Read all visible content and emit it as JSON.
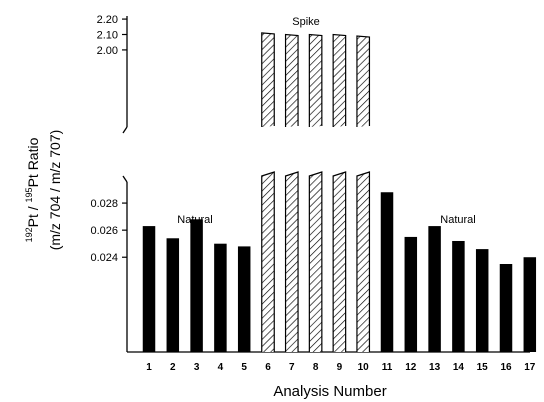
{
  "chart_data": {
    "type": "bar",
    "title": "",
    "xlabel": "Analysis Number",
    "ylabel": {
      "line1_sup1": "192",
      "line1_a": "Pt / ",
      "line1_sup2": "195",
      "line1_b": "Pt  Ratio",
      "line2": "(m/z 704 / m/z 707)"
    },
    "categories": [
      "1",
      "2",
      "3",
      "4",
      "5",
      "6",
      "7",
      "8",
      "9",
      "10",
      "11",
      "12",
      "13",
      "14",
      "15",
      "16",
      "17"
    ],
    "values": [
      0.0263,
      0.0254,
      0.0268,
      0.025,
      0.0248,
      2.11,
      2.1,
      2.1,
      2.1,
      2.09,
      0.0288,
      0.0255,
      0.0263,
      0.0252,
      0.0246,
      0.0235,
      0.024
    ],
    "bar_kind": [
      "natural",
      "natural",
      "natural",
      "natural",
      "natural",
      "spike",
      "spike",
      "spike",
      "spike",
      "spike",
      "natural",
      "natural",
      "natural",
      "natural",
      "natural",
      "natural",
      "natural"
    ],
    "y_scale": "broken",
    "upper_ticks": [
      "2.20",
      "2.10",
      "2.00"
    ],
    "upper_tick_values": [
      2.2,
      2.1,
      2.0
    ],
    "upper_range": [
      1.5,
      2.22
    ],
    "lower_ticks": [
      "0.028",
      "0.026",
      "0.024"
    ],
    "lower_tick_values": [
      0.028,
      0.026,
      0.024
    ],
    "lower_range": [
      0.017,
      0.03
    ],
    "annotations": {
      "spike": "Spike",
      "natural_left": "Natural",
      "natural_right": "Natural"
    },
    "grid": false,
    "colors": {
      "natural_bar": "#000000",
      "spike_hatch": "#000000"
    }
  }
}
